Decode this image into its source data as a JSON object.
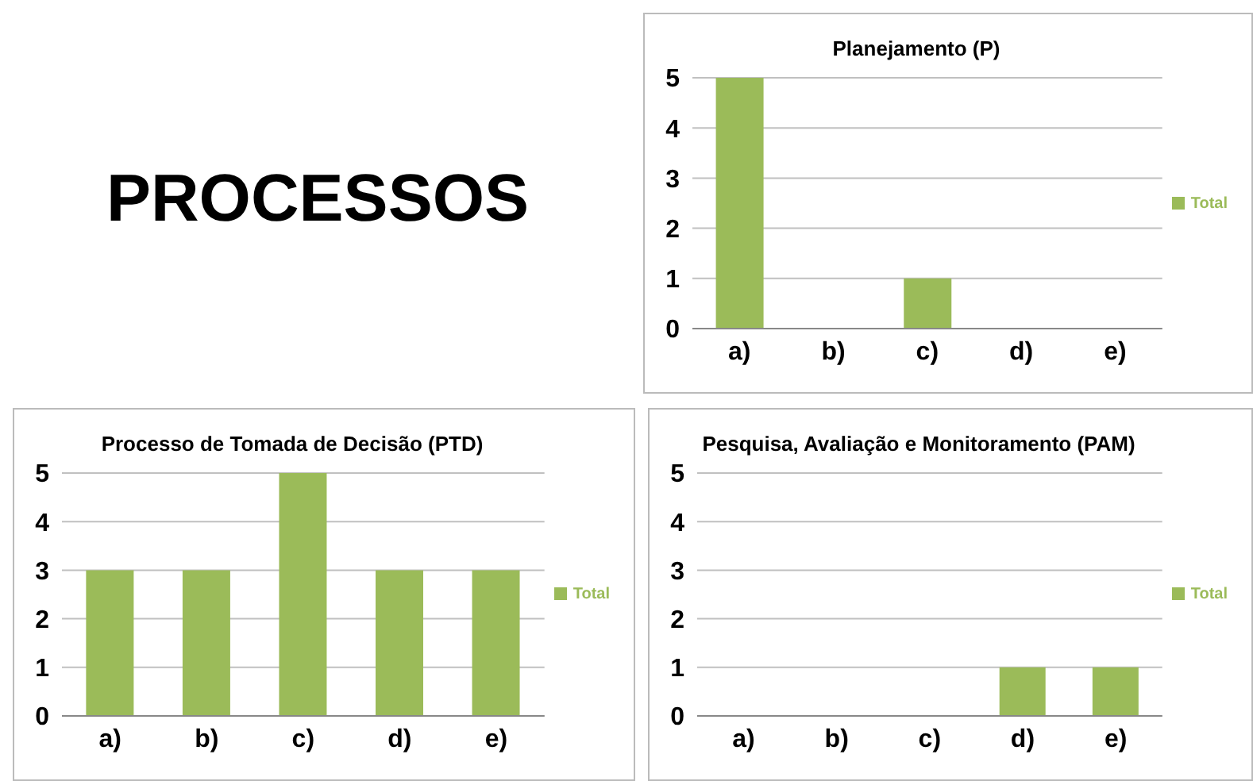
{
  "chart_data": [
    {
      "type": "other",
      "title": "PROCESSOS"
    },
    {
      "type": "bar",
      "title": "Planejamento (P)",
      "categories": [
        "a)",
        "b)",
        "c)",
        "d)",
        "e)"
      ],
      "series": [
        {
          "name": "Total",
          "color": "#9bbb59",
          "values": [
            5,
            0,
            1,
            0,
            0
          ]
        }
      ],
      "ylim": [
        0,
        5
      ],
      "yticks": [
        0,
        1,
        2,
        3,
        4,
        5
      ],
      "grid": "y",
      "legend": "right"
    },
    {
      "type": "bar",
      "title": "Processo de Tomada de Decisão (PTD)",
      "categories": [
        "a)",
        "b)",
        "c)",
        "d)",
        "e)"
      ],
      "series": [
        {
          "name": "Total",
          "color": "#9bbb59",
          "values": [
            3,
            3,
            5,
            3,
            3
          ]
        }
      ],
      "ylim": [
        0,
        5
      ],
      "yticks": [
        0,
        1,
        2,
        3,
        4,
        5
      ],
      "grid": "y",
      "legend": "right"
    },
    {
      "type": "bar",
      "title": "Pesquisa, Avaliação e Monitoramento (PAM)",
      "categories": [
        "a)",
        "b)",
        "c)",
        "d)",
        "e)"
      ],
      "series": [
        {
          "name": "Total",
          "color": "#9bbb59",
          "values": [
            0,
            0,
            0,
            1,
            1
          ]
        }
      ],
      "ylim": [
        0,
        5
      ],
      "yticks": [
        0,
        1,
        2,
        3,
        4,
        5
      ],
      "grid": "y",
      "legend": "right"
    }
  ]
}
